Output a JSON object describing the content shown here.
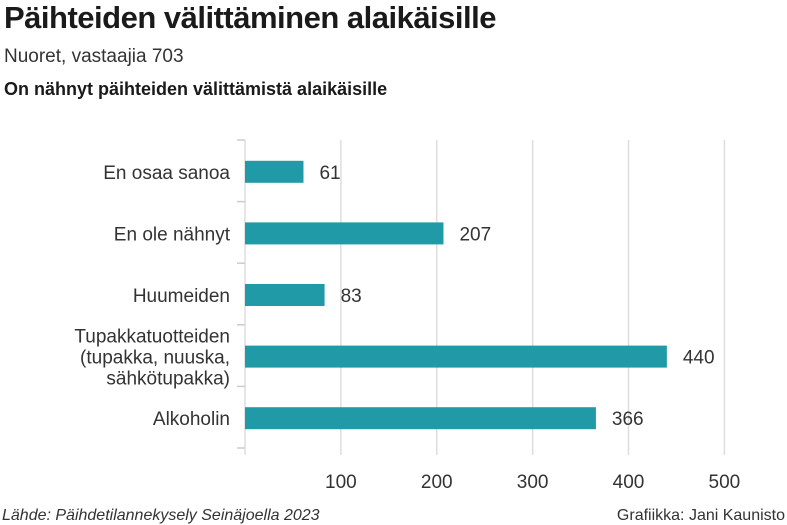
{
  "title": "Päihteiden välittäminen alaikäisille",
  "subtitle": "Nuoret, vastaajia 703",
  "question": "On nähnyt päihteiden välittämistä alaikäisille",
  "source": "Lähde: Päihdetilannekysely Seinäjoella 2023",
  "credit": "Grafiikka: Jani Kaunisto",
  "chart_data": {
    "type": "bar",
    "orientation": "horizontal",
    "categories": [
      [
        "En osaa sanoa"
      ],
      [
        "En ole nähnyt"
      ],
      [
        "Huumeiden"
      ],
      [
        "Tupakkatuotteiden",
        "(tupakka, nuuska,",
        "sähkötupakka)"
      ],
      [
        "Alkoholin"
      ]
    ],
    "values": [
      61,
      207,
      83,
      440,
      366
    ],
    "xlim": [
      0,
      500
    ],
    "xticks": [
      "100",
      "200",
      "300",
      "400",
      "500"
    ],
    "grid": true,
    "bar_color": "#1f9aa6"
  }
}
